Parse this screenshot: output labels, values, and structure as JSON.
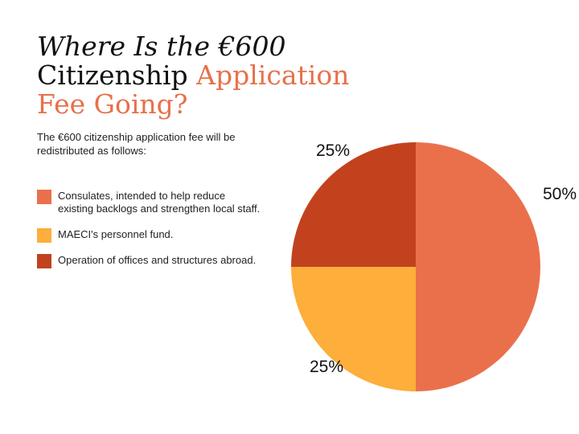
{
  "title": {
    "line1": "Where Is the €600",
    "line2_dark": "Citizenship ",
    "line2_accent": "Application",
    "line3_accent": "Fee Going?"
  },
  "subtitle": "The €600 citizenship application fee will be redistributed as follows:",
  "colors": {
    "accent": "#E8704B",
    "dark_text": "#111111"
  },
  "chart_data": {
    "type": "pie",
    "slices": [
      {
        "label": "Consulates, intended to help reduce existing backlogs and strengthen local staff.",
        "value": 50,
        "display": "50%",
        "color": "#EA704C"
      },
      {
        "label": "MAECI's personnel fund.",
        "value": 25,
        "display": "25%",
        "color": "#FDAE3B"
      },
      {
        "label": "Operation of offices and structures abroad.",
        "value": 25,
        "display": "25%",
        "color": "#C2421E"
      }
    ],
    "start_angle_deg": 0,
    "direction": "clockwise",
    "legend_position": "left"
  }
}
